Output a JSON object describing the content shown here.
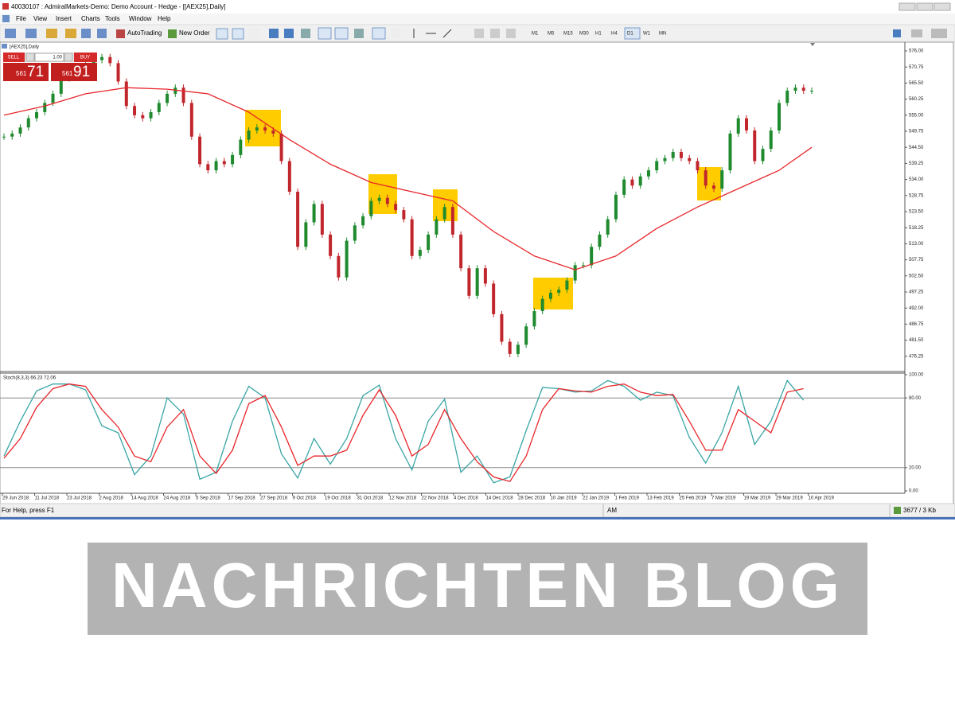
{
  "window": {
    "title": "40030107 : AdmiralMarkets-Demo: Demo Account - Hedge - [[AEX25],Daily]"
  },
  "menu": [
    "File",
    "View",
    "Insert",
    "Charts",
    "Tools",
    "Window",
    "Help"
  ],
  "toolbar": {
    "autotrading": "AutoTrading",
    "new_order": "New Order",
    "timeframes": [
      "M1",
      "M5",
      "M15",
      "M30",
      "H1",
      "H4",
      "D1",
      "W1",
      "MN"
    ]
  },
  "one_click": {
    "sell": "SELL",
    "lot": "1.00",
    "buy": "BUY",
    "sell_big": "561",
    "sell_small": "71",
    "buy_big": "561",
    "buy_small": "91"
  },
  "chart_data": [
    {
      "type": "candlestick",
      "title": "[AEX25],Daily",
      "up_color": "#1f8a2e",
      "down_color": "#c0262c",
      "xlim": [
        0,
        99
      ],
      "values": [
        548,
        549,
        551,
        554,
        556,
        559,
        562,
        567,
        569,
        571,
        572,
        573,
        574,
        572,
        566,
        558,
        555,
        554,
        556,
        559,
        562,
        564,
        559,
        548,
        539,
        537,
        540,
        539,
        542,
        547,
        550,
        551,
        550,
        549,
        540,
        530,
        512,
        520,
        526,
        516,
        509,
        502,
        514,
        519,
        522,
        527,
        528,
        526,
        524,
        521,
        509,
        511,
        516,
        521,
        525,
        516,
        505,
        496,
        505,
        500,
        490,
        481,
        477,
        480,
        486,
        491,
        495,
        497,
        498,
        501,
        506,
        506,
        512,
        516,
        521,
        529,
        534,
        532,
        535,
        537,
        540,
        541,
        543,
        541,
        540,
        537,
        532,
        531,
        537,
        549,
        554,
        550,
        540,
        544,
        550,
        559,
        563,
        564,
        563,
        563
      ],
      "moving_average": {
        "color": "#e8262a",
        "x": [
          0,
          5,
          10,
          15,
          20,
          25,
          30,
          35,
          40,
          45,
          50,
          55,
          60,
          65,
          70,
          75,
          80,
          85,
          90,
          95,
          99
        ],
        "values": [
          555,
          558,
          562,
          564,
          563.5,
          562,
          556,
          547,
          539,
          533,
          530,
          527,
          517,
          509,
          504.5,
          509,
          518,
          525,
          531,
          537,
          544.5
        ]
      },
      "ylim": [
        471.26,
        578.34
      ],
      "yticks": [
        {
          "value": 576,
          "label": "576.00"
        },
        570.75,
        {
          "value": 565.5,
          "label": "565.50"
        },
        560.25,
        {
          "value": 555,
          "label": "555.00"
        },
        549.75,
        {
          "value": 544.5,
          "label": "544.50"
        },
        539.25,
        {
          "value": 534,
          "label": "534.00"
        },
        528.75,
        {
          "value": 523.5,
          "label": "523.50"
        },
        518.25,
        {
          "value": 513,
          "label": "513.00"
        },
        507.75,
        {
          "value": 502.5,
          "label": "502.50"
        },
        497.25,
        {
          "value": 492,
          "label": "492.00"
        },
        486.75,
        {
          "value": 481.5,
          "label": "481.50"
        },
        476.25
      ],
      "x_labels": [
        "29 Jun 2018",
        "11 Jul 2018",
        "23 Jul 2018",
        "2 Aug 2018",
        "14 Aug 2018",
        "24 Aug 2018",
        "5 Sep 2018",
        "17 Sep 2018",
        "27 Sep 2018",
        "9 Oct 2018",
        "19 Oct 2018",
        "31 Oct 2018",
        "12 Nov 2018",
        "22 Nov 2018",
        "4 Dec 2018",
        "14 Dec 2018",
        "28 Dec 2018",
        "10 Jan 2019",
        "22 Jan 2019",
        "1 Feb 2019",
        "13 Feb 2019",
        "25 Feb 2019",
        "7 Mar 2019",
        "19 Mar 2019",
        "29 Mar 2019",
        "10 Apr 2019"
      ]
    },
    {
      "type": "line",
      "title": "Stoch(8,3,3) 66.23 72.06",
      "xlim": [
        0,
        99
      ],
      "x": [
        0,
        2,
        4,
        6,
        8,
        10,
        12,
        14,
        16,
        18,
        20,
        22,
        24,
        26,
        28,
        30,
        32,
        34,
        36,
        38,
        40,
        42,
        44,
        46,
        48,
        50,
        52,
        54,
        56,
        58,
        60,
        62,
        64,
        66,
        68,
        70,
        72,
        74,
        76,
        78,
        80,
        82,
        84,
        86,
        88,
        90,
        92,
        94,
        96,
        98
      ],
      "series": [
        {
          "color": "#3aa5a5",
          "values": [
            30,
            60,
            86,
            92,
            92,
            87,
            56,
            50,
            14,
            30,
            80,
            66,
            10,
            16,
            60,
            90,
            80,
            32,
            11,
            45,
            23,
            45,
            82,
            91,
            45,
            18,
            60,
            79,
            16,
            30,
            7,
            12,
            52,
            89,
            88,
            85,
            86,
            95,
            90,
            78,
            85,
            82,
            46,
            24,
            50,
            90,
            40,
            60,
            95,
            78
          ]
        },
        {
          "color": "#e8262a",
          "values": [
            28,
            45,
            72,
            88,
            92,
            90,
            70,
            55,
            30,
            25,
            55,
            70,
            30,
            15,
            35,
            75,
            82,
            55,
            22,
            30,
            30,
            35,
            65,
            87,
            65,
            30,
            40,
            70,
            45,
            25,
            12,
            8,
            30,
            70,
            88,
            86,
            85,
            90,
            92,
            85,
            82,
            83,
            60,
            35,
            35,
            70,
            60,
            50,
            85,
            88
          ]
        }
      ],
      "levels": [
        80,
        20
      ],
      "ylim": [
        0,
        100
      ],
      "yticks": [
        {
          "value": 100,
          "label": "100.00"
        },
        {
          "value": 80,
          "label": "80.00"
        },
        {
          "value": 20,
          "label": "20.00"
        },
        {
          "value": 0,
          "label": "0.00"
        }
      ]
    }
  ],
  "status": {
    "help": "For Help, press F1",
    "profile": "AM",
    "traffic": "3677 / 3 Kb"
  },
  "banner": "NACHRICHTEN BLOG"
}
